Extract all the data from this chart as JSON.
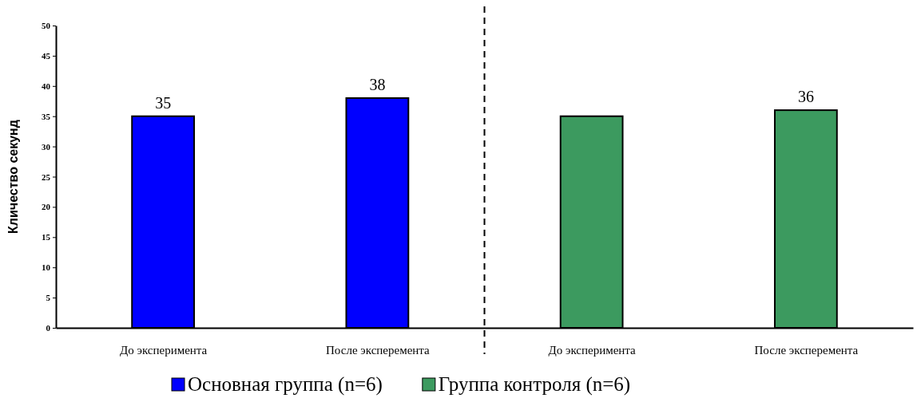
{
  "chart_data": {
    "type": "bar",
    "ylabel": "Кличество секунд",
    "categories": [
      "До эксперимента",
      "После эксперемента",
      "До эксперимента",
      "После эксперемента"
    ],
    "series": [
      {
        "name": "Основная группа (n=6)",
        "color": "#0000ff",
        "values": [
          35,
          38,
          null,
          null
        ],
        "value_labels": [
          "35",
          "38",
          null,
          null
        ]
      },
      {
        "name": "Группа контроля (n=6)",
        "color": "#3c9a5f",
        "values": [
          null,
          null,
          35,
          36
        ],
        "value_labels": [
          null,
          null,
          null,
          "36"
        ]
      }
    ],
    "ylim": [
      0,
      50
    ],
    "yticks": [
      0,
      5,
      10,
      15,
      20,
      25,
      30,
      35,
      40,
      45,
      50
    ],
    "grid": false,
    "legend": "bottom"
  }
}
